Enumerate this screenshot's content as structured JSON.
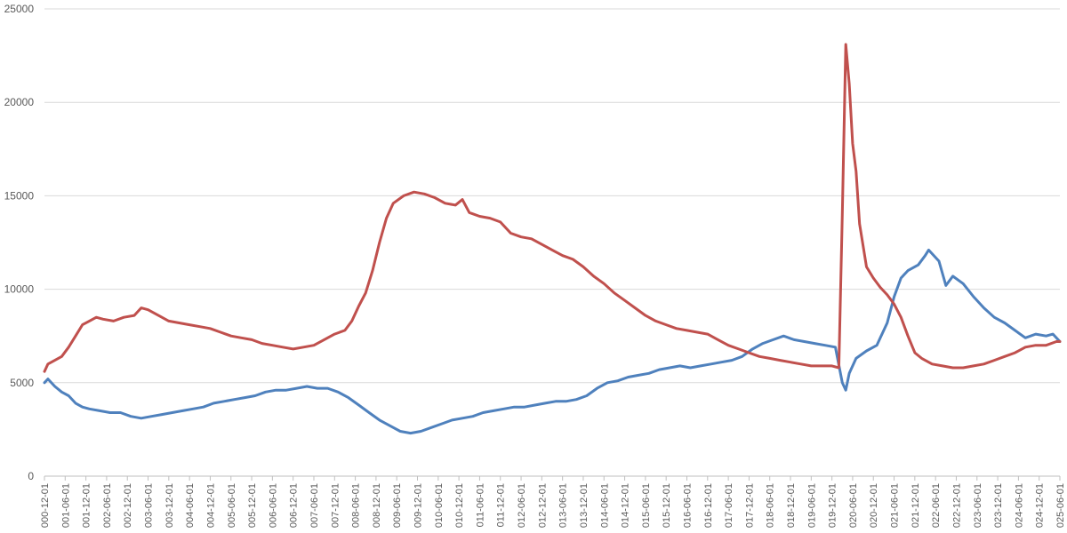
{
  "chart_data": {
    "type": "line",
    "title": "",
    "xlabel": "",
    "ylabel": "",
    "ylim": [
      0,
      25000
    ],
    "grid": true,
    "legend": "none",
    "yticks": [
      0,
      5000,
      10000,
      15000,
      20000,
      25000
    ],
    "x_start": "2000-12-01",
    "x_tick_labels": [
      "000-12-01",
      "001-06-01",
      "001-12-01",
      "002-06-01",
      "002-12-01",
      "003-06-01",
      "003-12-01",
      "004-06-01",
      "004-12-01",
      "005-06-01",
      "005-12-01",
      "006-06-01",
      "006-12-01",
      "007-06-01",
      "007-12-01",
      "008-06-01",
      "008-12-01",
      "009-06-01",
      "009-12-01",
      "010-06-01",
      "010-12-01",
      "011-06-01",
      "011-12-01",
      "012-06-01",
      "012-12-01",
      "013-06-01",
      "013-12-01",
      "014-06-01",
      "014-12-01",
      "015-06-01",
      "015-12-01",
      "016-06-01",
      "016-12-01",
      "017-06-01",
      "017-12-01",
      "018-06-01",
      "018-12-01",
      "019-06-01",
      "019-12-01",
      "020-06-01",
      "020-12-01",
      "021-06-01",
      "021-12-01",
      "022-06-01",
      "022-12-01",
      "023-06-01",
      "023-12-01",
      "024-06-01",
      "024-12-01",
      "025-06-01"
    ],
    "series": [
      {
        "color": "#4f81bd",
        "points": [
          [
            "2000-12-01",
            5000
          ],
          [
            "2001-01-01",
            5200
          ],
          [
            "2001-03-01",
            4800
          ],
          [
            "2001-05-01",
            4500
          ],
          [
            "2001-07-01",
            4300
          ],
          [
            "2001-09-01",
            3900
          ],
          [
            "2001-11-01",
            3700
          ],
          [
            "2002-01-01",
            3600
          ],
          [
            "2002-04-01",
            3500
          ],
          [
            "2002-07-01",
            3400
          ],
          [
            "2002-10-01",
            3400
          ],
          [
            "2003-01-01",
            3200
          ],
          [
            "2003-04-01",
            3100
          ],
          [
            "2003-07-01",
            3200
          ],
          [
            "2003-10-01",
            3300
          ],
          [
            "2004-01-01",
            3400
          ],
          [
            "2004-04-01",
            3500
          ],
          [
            "2004-07-01",
            3600
          ],
          [
            "2004-10-01",
            3700
          ],
          [
            "2005-01-01",
            3900
          ],
          [
            "2005-04-01",
            4000
          ],
          [
            "2005-07-01",
            4100
          ],
          [
            "2005-10-01",
            4200
          ],
          [
            "2006-01-01",
            4300
          ],
          [
            "2006-04-01",
            4500
          ],
          [
            "2006-07-01",
            4600
          ],
          [
            "2006-10-01",
            4600
          ],
          [
            "2007-01-01",
            4700
          ],
          [
            "2007-04-01",
            4800
          ],
          [
            "2007-07-01",
            4700
          ],
          [
            "2007-10-01",
            4700
          ],
          [
            "2008-01-01",
            4500
          ],
          [
            "2008-04-01",
            4200
          ],
          [
            "2008-07-01",
            3800
          ],
          [
            "2008-10-01",
            3400
          ],
          [
            "2009-01-01",
            3000
          ],
          [
            "2009-04-01",
            2700
          ],
          [
            "2009-07-01",
            2400
          ],
          [
            "2009-10-01",
            2300
          ],
          [
            "2010-01-01",
            2400
          ],
          [
            "2010-04-01",
            2600
          ],
          [
            "2010-07-01",
            2800
          ],
          [
            "2010-10-01",
            3000
          ],
          [
            "2011-01-01",
            3100
          ],
          [
            "2011-04-01",
            3200
          ],
          [
            "2011-07-01",
            3400
          ],
          [
            "2011-10-01",
            3500
          ],
          [
            "2012-01-01",
            3600
          ],
          [
            "2012-04-01",
            3700
          ],
          [
            "2012-07-01",
            3700
          ],
          [
            "2012-10-01",
            3800
          ],
          [
            "2013-01-01",
            3900
          ],
          [
            "2013-04-01",
            4000
          ],
          [
            "2013-07-01",
            4000
          ],
          [
            "2013-10-01",
            4100
          ],
          [
            "2014-01-01",
            4300
          ],
          [
            "2014-04-01",
            4700
          ],
          [
            "2014-07-01",
            5000
          ],
          [
            "2014-10-01",
            5100
          ],
          [
            "2015-01-01",
            5300
          ],
          [
            "2015-04-01",
            5400
          ],
          [
            "2015-07-01",
            5500
          ],
          [
            "2015-10-01",
            5700
          ],
          [
            "2016-01-01",
            5800
          ],
          [
            "2016-04-01",
            5900
          ],
          [
            "2016-07-01",
            5800
          ],
          [
            "2016-10-01",
            5900
          ],
          [
            "2017-01-01",
            6000
          ],
          [
            "2017-04-01",
            6100
          ],
          [
            "2017-07-01",
            6200
          ],
          [
            "2017-10-01",
            6400
          ],
          [
            "2018-01-01",
            6800
          ],
          [
            "2018-04-01",
            7100
          ],
          [
            "2018-07-01",
            7300
          ],
          [
            "2018-10-01",
            7500
          ],
          [
            "2019-01-01",
            7300
          ],
          [
            "2019-04-01",
            7200
          ],
          [
            "2019-07-01",
            7100
          ],
          [
            "2019-10-01",
            7000
          ],
          [
            "2020-01-01",
            6900
          ],
          [
            "2020-03-01",
            5000
          ],
          [
            "2020-04-01",
            4600
          ],
          [
            "2020-05-01",
            5500
          ],
          [
            "2020-07-01",
            6300
          ],
          [
            "2020-10-01",
            6700
          ],
          [
            "2021-01-01",
            7000
          ],
          [
            "2021-04-01",
            8200
          ],
          [
            "2021-06-01",
            9600
          ],
          [
            "2021-08-01",
            10600
          ],
          [
            "2021-10-01",
            11000
          ],
          [
            "2022-01-01",
            11300
          ],
          [
            "2022-03-01",
            11800
          ],
          [
            "2022-04-01",
            12100
          ],
          [
            "2022-07-01",
            11500
          ],
          [
            "2022-09-01",
            10200
          ],
          [
            "2022-11-01",
            10700
          ],
          [
            "2023-02-01",
            10300
          ],
          [
            "2023-05-01",
            9600
          ],
          [
            "2023-08-01",
            9000
          ],
          [
            "2023-11-01",
            8500
          ],
          [
            "2024-02-01",
            8200
          ],
          [
            "2024-05-01",
            7800
          ],
          [
            "2024-08-01",
            7400
          ],
          [
            "2024-11-01",
            7600
          ],
          [
            "2025-02-01",
            7500
          ],
          [
            "2025-04-01",
            7600
          ],
          [
            "2025-06-01",
            7200
          ]
        ]
      },
      {
        "color": "#c0504d",
        "points": [
          [
            "2000-12-01",
            5600
          ],
          [
            "2001-01-01",
            6000
          ],
          [
            "2001-03-01",
            6200
          ],
          [
            "2001-05-01",
            6400
          ],
          [
            "2001-07-01",
            6900
          ],
          [
            "2001-09-01",
            7500
          ],
          [
            "2001-11-01",
            8100
          ],
          [
            "2002-01-01",
            8300
          ],
          [
            "2002-03-01",
            8500
          ],
          [
            "2002-05-01",
            8400
          ],
          [
            "2002-08-01",
            8300
          ],
          [
            "2002-11-01",
            8500
          ],
          [
            "2003-02-01",
            8600
          ],
          [
            "2003-04-01",
            9000
          ],
          [
            "2003-06-01",
            8900
          ],
          [
            "2003-09-01",
            8600
          ],
          [
            "2003-12-01",
            8300
          ],
          [
            "2004-03-01",
            8200
          ],
          [
            "2004-06-01",
            8100
          ],
          [
            "2004-09-01",
            8000
          ],
          [
            "2004-12-01",
            7900
          ],
          [
            "2005-03-01",
            7700
          ],
          [
            "2005-06-01",
            7500
          ],
          [
            "2005-09-01",
            7400
          ],
          [
            "2005-12-01",
            7300
          ],
          [
            "2006-03-01",
            7100
          ],
          [
            "2006-06-01",
            7000
          ],
          [
            "2006-09-01",
            6900
          ],
          [
            "2006-12-01",
            6800
          ],
          [
            "2007-03-01",
            6900
          ],
          [
            "2007-06-01",
            7000
          ],
          [
            "2007-09-01",
            7300
          ],
          [
            "2007-12-01",
            7600
          ],
          [
            "2008-03-01",
            7800
          ],
          [
            "2008-05-01",
            8300
          ],
          [
            "2008-07-01",
            9100
          ],
          [
            "2008-09-01",
            9800
          ],
          [
            "2008-11-01",
            11000
          ],
          [
            "2009-01-01",
            12500
          ],
          [
            "2009-03-01",
            13800
          ],
          [
            "2009-05-01",
            14600
          ],
          [
            "2009-08-01",
            15000
          ],
          [
            "2009-11-01",
            15200
          ],
          [
            "2010-02-01",
            15100
          ],
          [
            "2010-05-01",
            14900
          ],
          [
            "2010-08-01",
            14600
          ],
          [
            "2010-11-01",
            14500
          ],
          [
            "2011-01-01",
            14800
          ],
          [
            "2011-03-01",
            14100
          ],
          [
            "2011-06-01",
            13900
          ],
          [
            "2011-09-01",
            13800
          ],
          [
            "2011-12-01",
            13600
          ],
          [
            "2012-03-01",
            13000
          ],
          [
            "2012-06-01",
            12800
          ],
          [
            "2012-09-01",
            12700
          ],
          [
            "2012-12-01",
            12400
          ],
          [
            "2013-03-01",
            12100
          ],
          [
            "2013-06-01",
            11800
          ],
          [
            "2013-09-01",
            11600
          ],
          [
            "2013-12-01",
            11200
          ],
          [
            "2014-03-01",
            10700
          ],
          [
            "2014-06-01",
            10300
          ],
          [
            "2014-09-01",
            9800
          ],
          [
            "2014-12-01",
            9400
          ],
          [
            "2015-03-01",
            9000
          ],
          [
            "2015-06-01",
            8600
          ],
          [
            "2015-09-01",
            8300
          ],
          [
            "2015-12-01",
            8100
          ],
          [
            "2016-03-01",
            7900
          ],
          [
            "2016-06-01",
            7800
          ],
          [
            "2016-09-01",
            7700
          ],
          [
            "2016-12-01",
            7600
          ],
          [
            "2017-03-01",
            7300
          ],
          [
            "2017-06-01",
            7000
          ],
          [
            "2017-09-01",
            6800
          ],
          [
            "2017-12-01",
            6600
          ],
          [
            "2018-03-01",
            6400
          ],
          [
            "2018-06-01",
            6300
          ],
          [
            "2018-09-01",
            6200
          ],
          [
            "2018-12-01",
            6100
          ],
          [
            "2019-03-01",
            6000
          ],
          [
            "2019-06-01",
            5900
          ],
          [
            "2019-09-01",
            5900
          ],
          [
            "2019-12-01",
            5900
          ],
          [
            "2020-02-01",
            5800
          ],
          [
            "2020-03-01",
            14000
          ],
          [
            "2020-04-01",
            23100
          ],
          [
            "2020-05-01",
            21000
          ],
          [
            "2020-06-01",
            17800
          ],
          [
            "2020-07-01",
            16300
          ],
          [
            "2020-08-01",
            13500
          ],
          [
            "2020-10-01",
            11200
          ],
          [
            "2020-12-01",
            10600
          ],
          [
            "2021-02-01",
            10100
          ],
          [
            "2021-04-01",
            9700
          ],
          [
            "2021-06-01",
            9200
          ],
          [
            "2021-08-01",
            8500
          ],
          [
            "2021-10-01",
            7500
          ],
          [
            "2021-12-01",
            6600
          ],
          [
            "2022-02-01",
            6300
          ],
          [
            "2022-05-01",
            6000
          ],
          [
            "2022-08-01",
            5900
          ],
          [
            "2022-11-01",
            5800
          ],
          [
            "2023-02-01",
            5800
          ],
          [
            "2023-05-01",
            5900
          ],
          [
            "2023-08-01",
            6000
          ],
          [
            "2023-11-01",
            6200
          ],
          [
            "2024-02-01",
            6400
          ],
          [
            "2024-05-01",
            6600
          ],
          [
            "2024-08-01",
            6900
          ],
          [
            "2024-11-01",
            7000
          ],
          [
            "2025-02-01",
            7000
          ],
          [
            "2025-05-01",
            7200
          ],
          [
            "2025-06-01",
            7200
          ]
        ]
      }
    ]
  }
}
